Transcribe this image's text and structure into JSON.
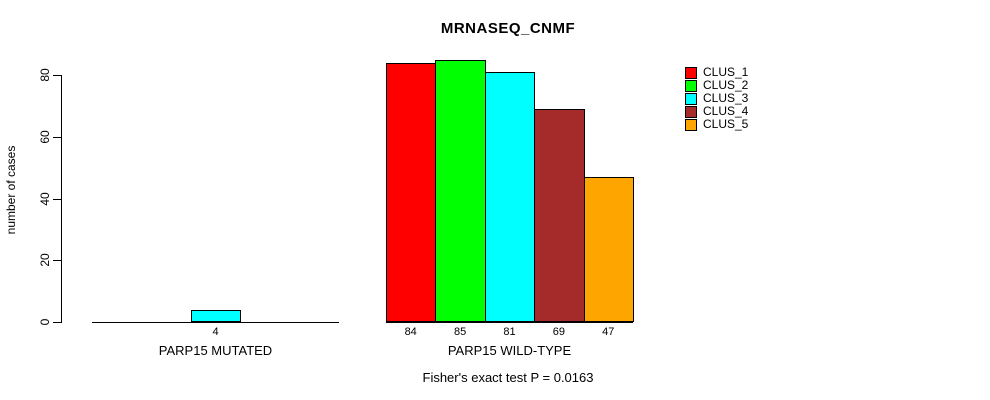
{
  "chart_data": {
    "type": "bar",
    "title": "MRNASEQ_CNMF",
    "ylabel": "number of cases",
    "ylim": [
      0,
      80
    ],
    "yticks": [
      0,
      20,
      40,
      60,
      80
    ],
    "grid": false,
    "legend_position": "top-right",
    "categories": [
      "PARP15 MUTATED",
      "PARP15 WILD-TYPE"
    ],
    "series": [
      {
        "name": "CLUS_1",
        "color": "#ff0000",
        "values": [
          0,
          84
        ]
      },
      {
        "name": "CLUS_2",
        "color": "#00ff00",
        "values": [
          0,
          85
        ]
      },
      {
        "name": "CLUS_3",
        "color": "#00ffff",
        "values": [
          4,
          81
        ]
      },
      {
        "name": "CLUS_4",
        "color": "#a52a2a",
        "values": [
          0,
          69
        ]
      },
      {
        "name": "CLUS_5",
        "color": "#ffa500",
        "values": [
          0,
          47
        ]
      }
    ],
    "bar_value_labels": [
      [
        "",
        "",
        "4",
        "",
        ""
      ],
      [
        "84",
        "85",
        "81",
        "69",
        "47"
      ]
    ],
    "footnote": "Fisher's exact test P = 0.0163",
    "axis_color": "#000000",
    "background": "#ffffff"
  }
}
